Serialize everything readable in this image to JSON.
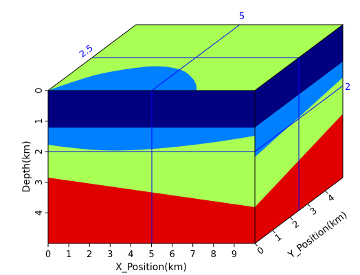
{
  "chart_data": {
    "type": "3d-cube",
    "colors": {
      "layer_navy": "#000080",
      "layer_blue": "#0080ff",
      "layer_green": "#aaff55",
      "layer_red": "#e00000",
      "crosshair": "#0000ff",
      "frame": "#000000"
    },
    "x_axis": {
      "label": "X_Position(km)",
      "range": [
        0,
        10
      ],
      "ticks": [
        "0",
        "1",
        "2",
        "3",
        "4",
        "5",
        "6",
        "7",
        "8",
        "9"
      ]
    },
    "y_axis": {
      "label": "Y_Position(km)",
      "range": [
        0,
        5
      ],
      "ticks": [
        "0",
        "1",
        "2",
        "3",
        "4"
      ]
    },
    "z_axis": {
      "label": "Depth(km)",
      "range": [
        0,
        5
      ],
      "ticks": [
        "0",
        "1",
        "2",
        "3",
        "4"
      ]
    },
    "slice_annotations": {
      "x_slice": "5",
      "y_slice": "2.5",
      "z_slice": "2"
    },
    "slices": {
      "x": 5,
      "y": 2.5,
      "z": 2
    }
  }
}
